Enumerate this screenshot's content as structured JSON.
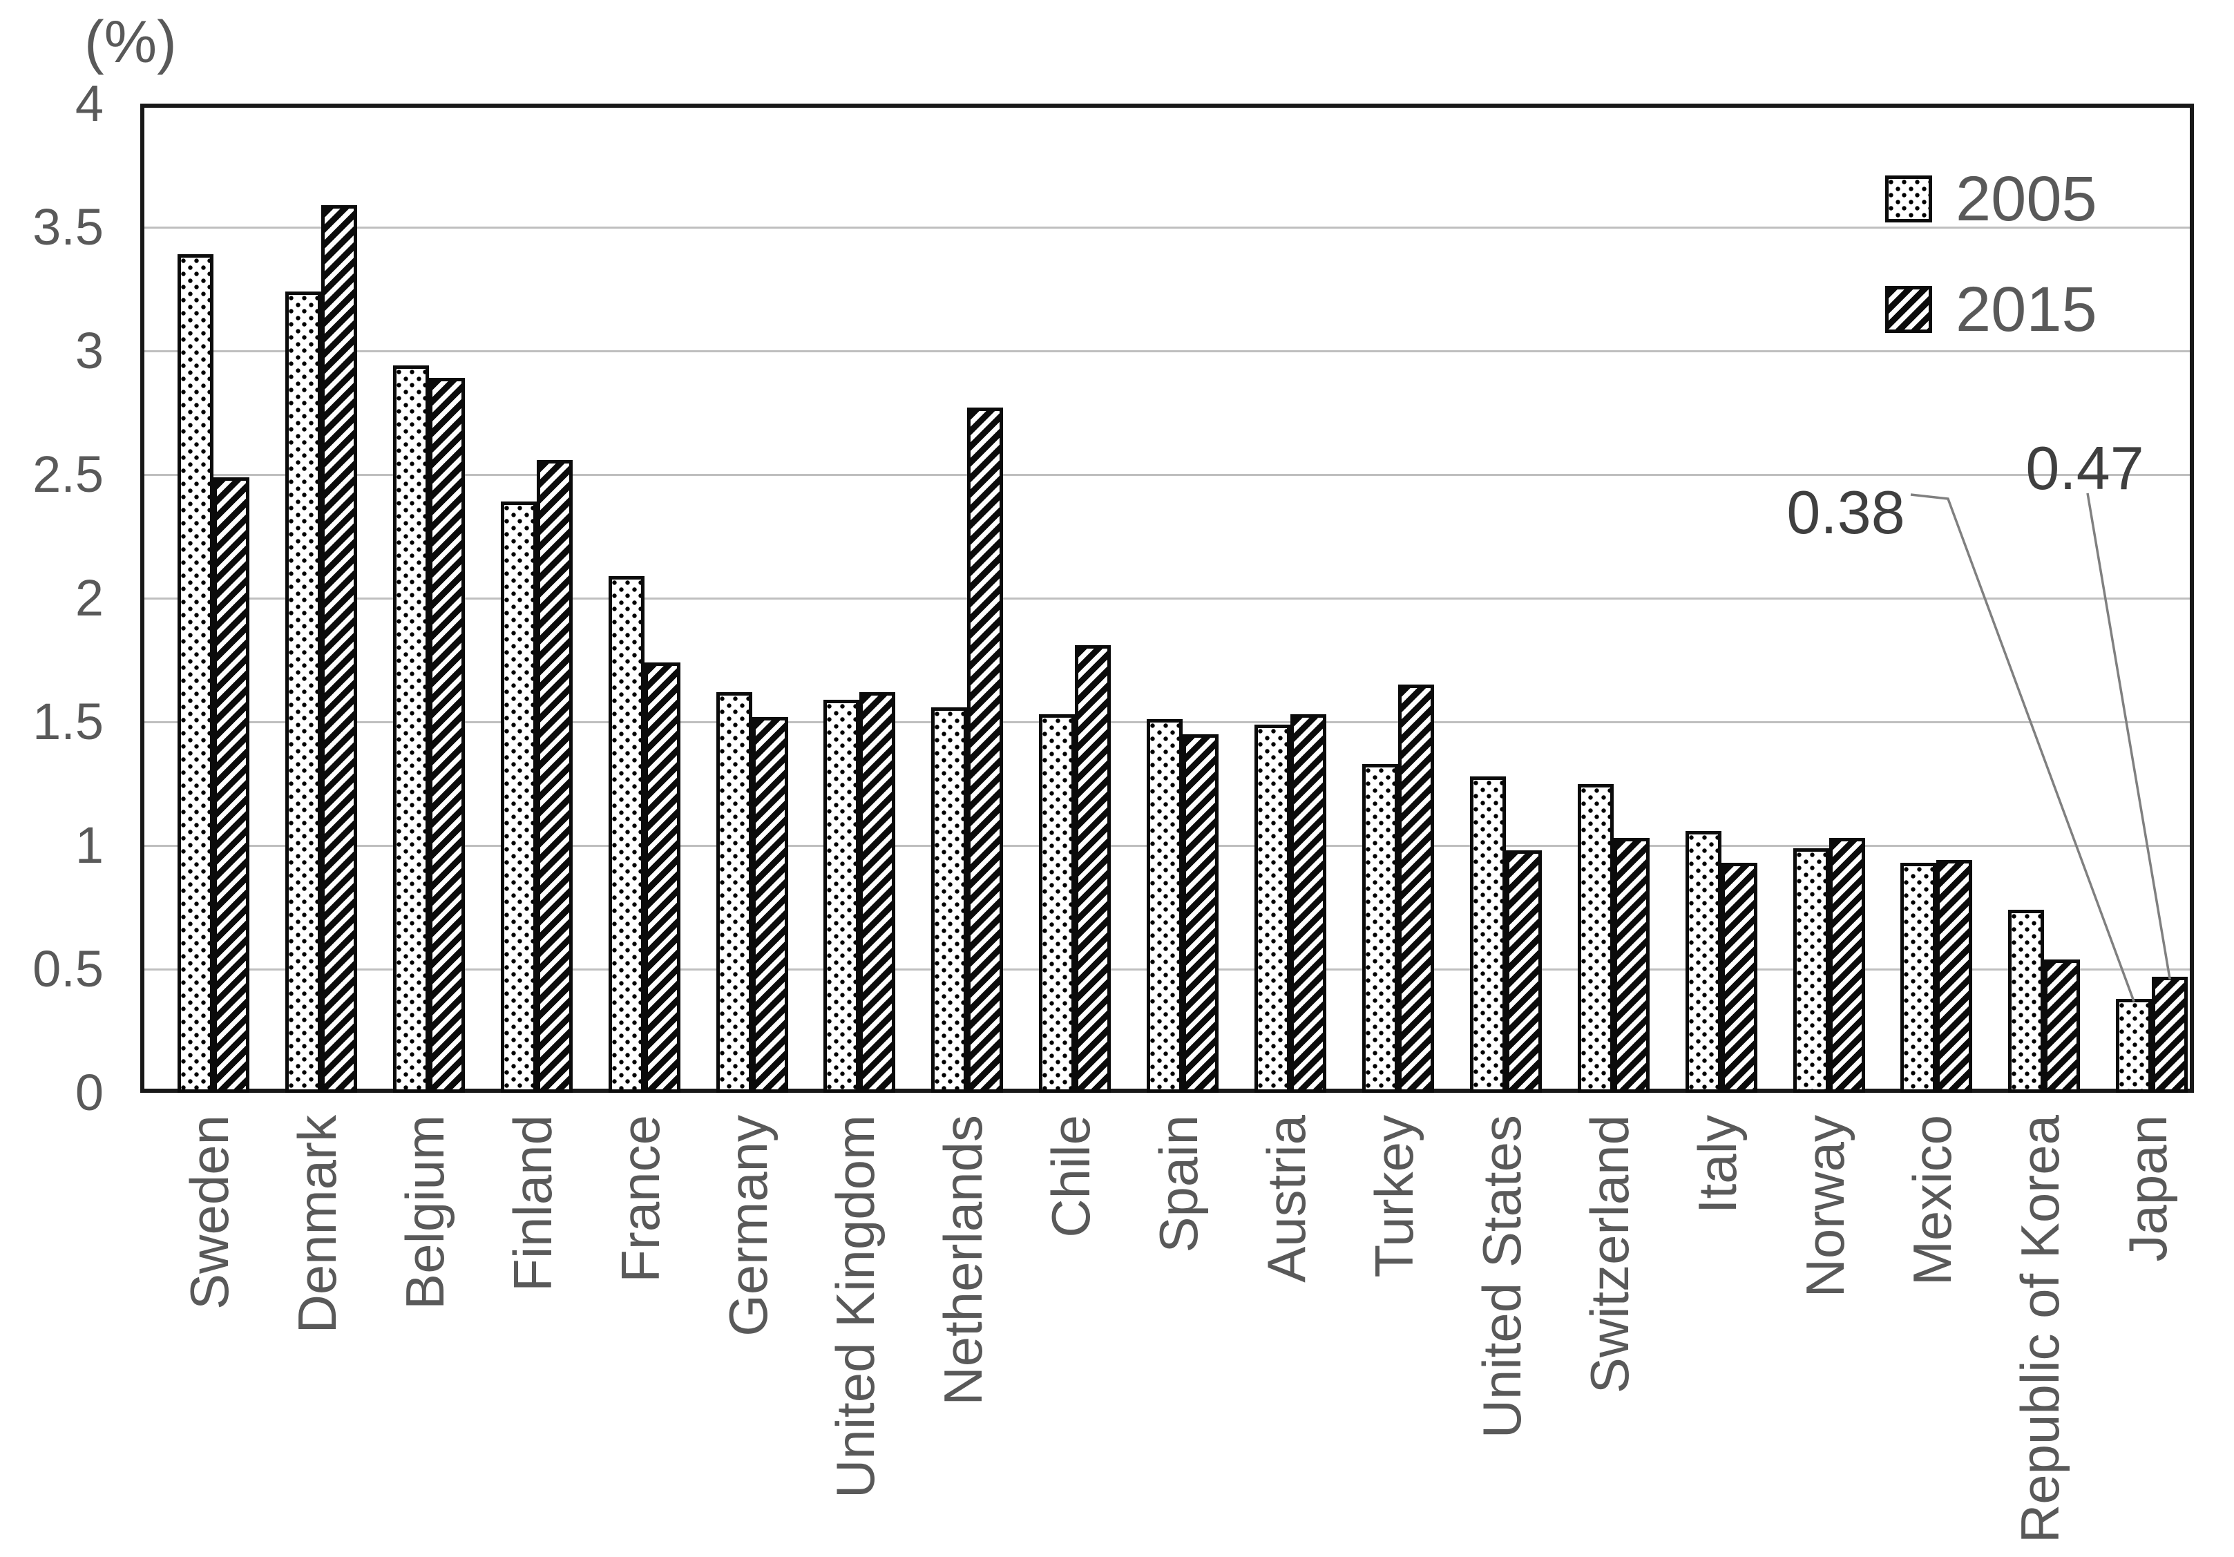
{
  "chart_data": {
    "type": "bar",
    "title": "",
    "ylabel": "(%)",
    "xlabel": "",
    "ylim": [
      0,
      4
    ],
    "ytick_step": 0.5,
    "ytick_labels": [
      "0",
      "0.5",
      "1",
      "1.5",
      "2",
      "2.5",
      "3",
      "3.5",
      "4"
    ],
    "grid": true,
    "legend_position": "top-right inside plot area",
    "categories": [
      "Sweden",
      "Denmark",
      "Belgium",
      "Finland",
      "France",
      "Germany",
      "United Kingdom",
      "Netherlands",
      "Chile",
      "Spain",
      "Austria",
      "Turkey",
      "United States",
      "Switzerland",
      "Italy",
      "Norway",
      "Mexico",
      "Republic of Korea",
      "Japan"
    ],
    "series": [
      {
        "name": "2005",
        "pattern": "dots",
        "values": [
          3.39,
          3.24,
          2.94,
          2.39,
          2.09,
          1.62,
          1.59,
          1.56,
          1.53,
          1.51,
          1.49,
          1.33,
          1.28,
          1.25,
          1.06,
          0.99,
          0.93,
          0.74,
          0.38
        ]
      },
      {
        "name": "2015",
        "pattern": "diagonal-hatch",
        "values": [
          2.49,
          3.59,
          2.89,
          2.56,
          1.74,
          1.52,
          1.62,
          2.77,
          1.81,
          1.45,
          1.53,
          1.65,
          0.98,
          1.03,
          0.93,
          1.03,
          0.94,
          0.54,
          0.47
        ]
      }
    ],
    "annotations": [
      {
        "label": "0.38",
        "category": "Japan",
        "series": "2005"
      },
      {
        "label": "0.47",
        "category": "Japan",
        "series": "2015"
      }
    ],
    "colors": {
      "background": "#ffffff",
      "bar_fill": "#ffffff",
      "bar_stroke": "#0b0b0b",
      "gridline": "#bfbfbf",
      "axis_border": "#181818",
      "tick_text": "#595959",
      "annotation_text": "#3f3f3f",
      "leader_line": "#808080"
    }
  }
}
